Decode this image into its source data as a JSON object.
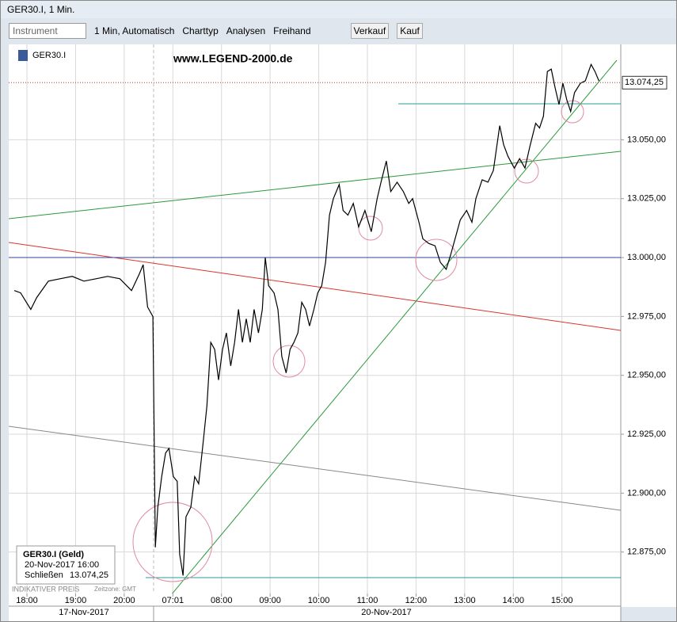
{
  "window": {
    "title": "GER30.I, 1 Min."
  },
  "toolbar": {
    "instrument": "Instrument",
    "interval": "1 Min, Automatisch",
    "charttype": "Charttyp",
    "analyses": "Analysen",
    "freehand": "Freihand",
    "sell": "Verkauf",
    "buy": "Kauf"
  },
  "chart_data": {
    "type": "line",
    "symbol": "GER30.I",
    "watermark": "www.LEGEND-2000.de",
    "series": [
      {
        "name": "GER30.I",
        "color": "#000000",
        "x": [
          -0.26,
          -0.13,
          0.08,
          0.2,
          0.44,
          0.68,
          0.93,
          1.17,
          1.42,
          1.66,
          1.91,
          2.15,
          2.31,
          2.39,
          2.48,
          2.59,
          2.64,
          2.69,
          2.77,
          2.85,
          2.92,
          3.01,
          3.09,
          3.14,
          3.21,
          3.27,
          3.37,
          3.45,
          3.53,
          3.62,
          3.7,
          3.78,
          3.86,
          3.94,
          4.02,
          4.1,
          4.19,
          4.27,
          4.35,
          4.43,
          4.51,
          4.59,
          4.67,
          4.76,
          4.84,
          4.9,
          4.97,
          5.08,
          5.16,
          5.24,
          5.33,
          5.41,
          5.49,
          5.57,
          5.65,
          5.73,
          5.81,
          5.9,
          5.98,
          6.06,
          6.14,
          6.22,
          6.3,
          6.42,
          6.5,
          6.6,
          6.71,
          6.82,
          6.95,
          7.08,
          7.2,
          7.28,
          7.39,
          7.48,
          7.61,
          7.74,
          7.85,
          7.93,
          8.06,
          8.14,
          8.26,
          8.39,
          8.5,
          8.62,
          8.71,
          8.83,
          8.91,
          9.04,
          9.15,
          9.23,
          9.36,
          9.48,
          9.59,
          9.72,
          9.8,
          9.89,
          10.02,
          10.13,
          10.24,
          10.34,
          10.46,
          10.54,
          10.62,
          10.7,
          10.78,
          10.86,
          10.94,
          11.02,
          11.1,
          11.18,
          11.26,
          11.38,
          11.48,
          11.6,
          11.68,
          11.76
        ],
        "values": [
          12986,
          12985,
          12978,
          12983,
          12990,
          12991,
          12992,
          12990,
          12991,
          12992,
          12991,
          12986,
          12993,
          12997,
          12979,
          12975,
          12877,
          12894,
          12907,
          12917,
          12919,
          12907,
          12905,
          12874,
          12865,
          12890,
          12894,
          12907,
          12904,
          12921,
          12937,
          12964,
          12961,
          12948,
          12961,
          12968,
          12954,
          12964,
          12978,
          12964,
          12974,
          12964,
          12978,
          12968,
          12978,
          13000,
          12988,
          12985,
          12978,
          12958,
          12951,
          12961,
          12964,
          12968,
          12981,
          12978,
          12971,
          12978,
          12985,
          12988,
          12998,
          13018,
          13025,
          13031,
          13020,
          13018,
          13023,
          13013,
          13020,
          13011,
          13025,
          13032,
          13041,
          13028,
          13032,
          13028,
          13023,
          13025,
          13015,
          13008,
          13006,
          13005,
          12998,
          12995,
          13001,
          13010,
          13016,
          13020,
          13015,
          13025,
          13033,
          13032,
          13037,
          13056,
          13048,
          13043,
          13038,
          13042,
          13038,
          13047,
          13057,
          13055,
          13060,
          13079,
          13080,
          13072,
          13065,
          13074,
          13067,
          13062,
          13070,
          13074,
          13075,
          13082,
          13079,
          13075
        ]
      }
    ],
    "last_price": {
      "value": 13074.25,
      "label": "13.074,25"
    },
    "xlim": [
      -0.375,
      12.21
    ],
    "xticks": [
      {
        "value": 0,
        "label": "18:00"
      },
      {
        "value": 1,
        "label": "19:00"
      },
      {
        "value": 2,
        "label": "20:00"
      },
      {
        "value": 3,
        "label": "07:01"
      },
      {
        "value": 4,
        "label": "08:00"
      },
      {
        "value": 5,
        "label": "09:00"
      },
      {
        "value": 6,
        "label": "10:00"
      },
      {
        "value": 7,
        "label": "11:00"
      },
      {
        "value": 8,
        "label": "12:00"
      },
      {
        "value": 9,
        "label": "13:00"
      },
      {
        "value": 10,
        "label": "14:00"
      },
      {
        "value": 11,
        "label": "15:00"
      }
    ],
    "date_labels": [
      "17-Nov-2017",
      "20-Nov-2017"
    ],
    "ylim": [
      12857.4,
      13090.5
    ],
    "yticks": [
      {
        "value": 12875,
        "label": "12.875,00"
      },
      {
        "value": 12900,
        "label": "12.900,00"
      },
      {
        "value": 12925,
        "label": "12.925,00"
      },
      {
        "value": 12950,
        "label": "12.950,00"
      },
      {
        "value": 12975,
        "label": "12.975,00"
      },
      {
        "value": 13000,
        "label": "13.000,00"
      },
      {
        "value": 13025,
        "label": "13.025,00"
      },
      {
        "value": 13050,
        "label": "13.050,00"
      }
    ],
    "grid": true,
    "info_box": {
      "title": "GER30.I (Geld)",
      "date": "20-Nov-2017 16:00",
      "close_label": "Schließen",
      "close_value": "13.074,25"
    },
    "footer": {
      "price_type": "INDIKATIVER PREIS",
      "timezone": "Zeitzone: GMT"
    }
  }
}
